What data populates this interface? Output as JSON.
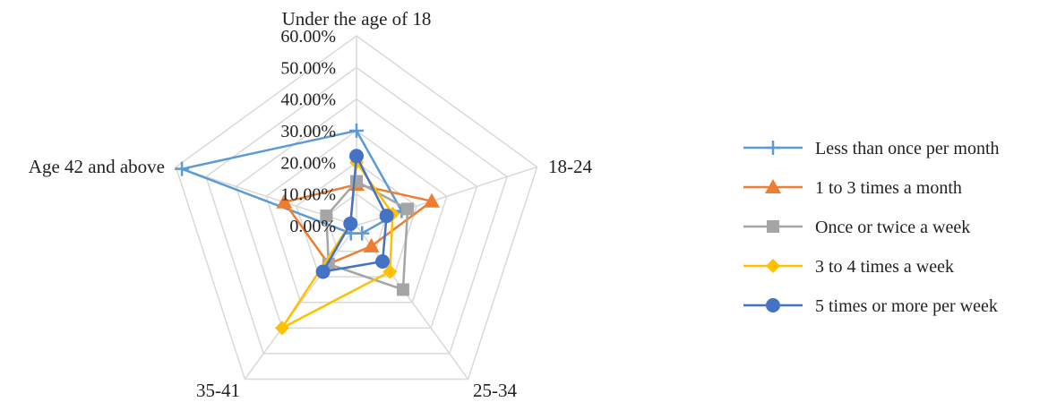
{
  "chart_data": {
    "type": "radar",
    "title": "",
    "axes": [
      "Under the age of 18",
      "18-24",
      "25-34",
      "35-41",
      "Age 42 and above"
    ],
    "ticks": [
      "0.00%",
      "10.00%",
      "20.00%",
      "30.00%",
      "40.00%",
      "50.00%",
      "60.00%"
    ],
    "rmin": 0,
    "rmax": 60,
    "grid": true,
    "legend_position": "right",
    "series": [
      {
        "name": "Less than once per month",
        "color": "#5B9BD5",
        "marker": "plus",
        "values": [
          30,
          15,
          3,
          3,
          58
        ]
      },
      {
        "name": "1 to 3 times a month",
        "color": "#ED7D31",
        "marker": "triangle",
        "values": [
          13,
          25,
          8,
          15,
          24
        ]
      },
      {
        "name": "Once or twice a week",
        "color": "#A5A5A5",
        "marker": "square",
        "values": [
          14,
          17,
          25,
          15,
          10
        ]
      },
      {
        "name": "3 to 4 times a week",
        "color": "#FFC000",
        "marker": "diamond",
        "values": [
          20,
          12,
          18,
          40,
          2
        ]
      },
      {
        "name": "5 times or more per week",
        "color": "#4472C4",
        "marker": "circle",
        "values": [
          22,
          10,
          14,
          18,
          2
        ]
      }
    ]
  }
}
